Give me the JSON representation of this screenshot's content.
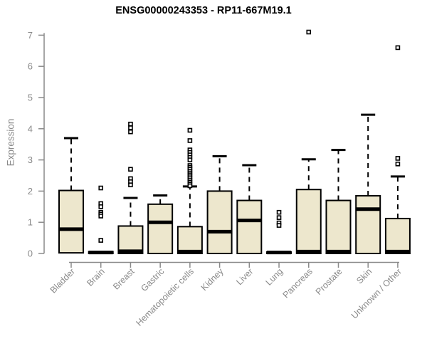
{
  "chart_data": {
    "type": "boxplot",
    "title": "ENSG00000243353 - RP11-667M19.1",
    "ylabel": "Expression",
    "xlabel": "",
    "ylim": [
      0,
      7
    ],
    "yticks": [
      0,
      1,
      2,
      3,
      4,
      5,
      6,
      7
    ],
    "grid": false,
    "legend": false,
    "colors": {
      "box_fill": "#EDE7CD",
      "box_stroke": "#000000",
      "median": "#000000",
      "axis": "#8a8a8a",
      "tick_label": "#8a8a8a",
      "title": "#000000",
      "outlier_fill": "#ffffff",
      "outlier_stroke": "#000000",
      "background": "#ffffff"
    },
    "categories": [
      "Bladder",
      "Brain",
      "Breast",
      "Gastric",
      "Hematopoietic cells",
      "Kidney",
      "Liver",
      "Lung",
      "Pancreas",
      "Prostate",
      "Skin",
      "Unknown / Other"
    ],
    "boxes": [
      {
        "category": "Bladder",
        "whisker_low": 0,
        "q1": 0.02,
        "median": 0.78,
        "q3": 2.02,
        "whisker_high": 3.7,
        "outliers": []
      },
      {
        "category": "Brain",
        "whisker_low": 0,
        "q1": 0.0,
        "median": 0.03,
        "q3": 0.06,
        "whisker_high": 0.08,
        "outliers": [
          2.1,
          1.6,
          1.5,
          1.32,
          1.26,
          1.2,
          0.42
        ]
      },
      {
        "category": "Breast",
        "whisker_low": 0,
        "q1": 0.0,
        "median": 0.07,
        "q3": 0.88,
        "whisker_high": 1.78,
        "outliers": [
          4.15,
          4.03,
          3.9,
          2.7,
          2.4,
          2.3,
          2.2
        ]
      },
      {
        "category": "Gastric",
        "whisker_low": 0,
        "q1": 0.0,
        "median": 1.0,
        "q3": 1.58,
        "whisker_high": 1.86,
        "outliers": []
      },
      {
        "category": "Hematopoietic cells",
        "whisker_low": 0,
        "q1": 0.0,
        "median": 0.06,
        "q3": 0.86,
        "whisker_high": 2.15,
        "outliers": [
          3.95,
          3.62,
          3.32,
          3.24,
          3.16,
          3.08,
          3.0,
          2.82,
          2.76,
          2.7,
          2.64,
          2.58,
          2.52,
          2.46,
          2.4,
          2.34,
          2.28,
          2.22,
          2.17
        ]
      },
      {
        "category": "Kidney",
        "whisker_low": 0,
        "q1": 0.0,
        "median": 0.7,
        "q3": 2.0,
        "whisker_high": 3.12,
        "outliers": []
      },
      {
        "category": "Liver",
        "whisker_low": 0,
        "q1": 0.0,
        "median": 1.06,
        "q3": 1.7,
        "whisker_high": 2.83,
        "outliers": []
      },
      {
        "category": "Lung",
        "whisker_low": 0,
        "q1": 0.0,
        "median": 0.03,
        "q3": 0.05,
        "whisker_high": 0.07,
        "outliers": [
          1.32,
          1.15,
          0.98,
          0.9
        ]
      },
      {
        "category": "Pancreas",
        "whisker_low": 0,
        "q1": 0.0,
        "median": 0.06,
        "q3": 2.05,
        "whisker_high": 3.02,
        "outliers": [
          7.1
        ]
      },
      {
        "category": "Prostate",
        "whisker_low": 0,
        "q1": 0.0,
        "median": 0.06,
        "q3": 1.7,
        "whisker_high": 3.32,
        "outliers": []
      },
      {
        "category": "Skin",
        "whisker_low": 0,
        "q1": 0.0,
        "median": 1.42,
        "q3": 1.85,
        "whisker_high": 4.45,
        "outliers": []
      },
      {
        "category": "Unknown / Other",
        "whisker_low": 0,
        "q1": 0.0,
        "median": 0.06,
        "q3": 1.12,
        "whisker_high": 2.47,
        "outliers": [
          6.6,
          3.05,
          2.87
        ]
      }
    ]
  }
}
